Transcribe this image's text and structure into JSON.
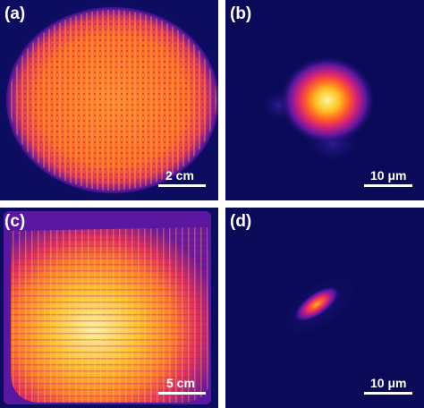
{
  "figure": {
    "panels": [
      {
        "id": "a",
        "label": "(a)",
        "scalebar": "2 cm"
      },
      {
        "id": "b",
        "label": "(b)",
        "scalebar": "10 μm"
      },
      {
        "id": "c",
        "label": "(c)",
        "scalebar": "5 cm"
      },
      {
        "id": "d",
        "label": "(d)",
        "scalebar": "10 μm"
      }
    ],
    "colormap": [
      "#0a0a5a",
      "#4a1590",
      "#b0208a",
      "#ff3a3a",
      "#ff8a20",
      "#ffe060",
      "#fffbd0"
    ]
  }
}
